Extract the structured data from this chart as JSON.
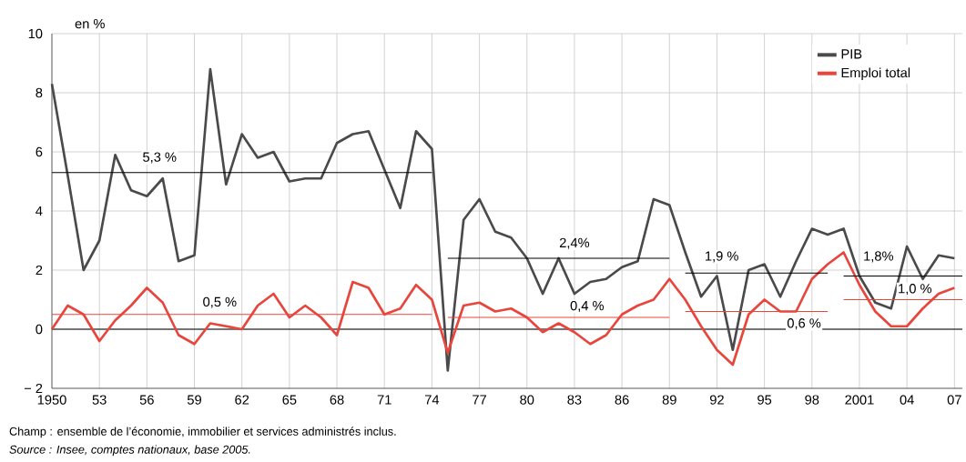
{
  "chart_data": {
    "type": "line",
    "ylabel": "en %",
    "x": [
      1950,
      1951,
      1952,
      1953,
      1954,
      1955,
      1956,
      1957,
      1958,
      1959,
      1960,
      1961,
      1962,
      1963,
      1964,
      1965,
      1966,
      1967,
      1968,
      1969,
      1970,
      1971,
      1972,
      1973,
      1974,
      1975,
      1976,
      1977,
      1978,
      1979,
      1980,
      1981,
      1982,
      1983,
      1984,
      1985,
      1986,
      1987,
      1988,
      1989,
      1990,
      1991,
      1992,
      1993,
      1994,
      1995,
      1996,
      1997,
      1998,
      1999,
      2000,
      2001,
      2002,
      2003,
      2004,
      2005,
      2006,
      2007
    ],
    "series": [
      {
        "name": "PIB",
        "color": "#4a4a4a",
        "values": [
          8.3,
          5.2,
          2.0,
          3.0,
          5.9,
          4.7,
          4.5,
          5.1,
          2.3,
          2.5,
          8.8,
          4.9,
          6.6,
          5.8,
          6.0,
          5.0,
          5.1,
          5.1,
          6.3,
          6.6,
          6.7,
          5.4,
          4.1,
          6.7,
          6.1,
          -1.4,
          3.7,
          4.4,
          3.3,
          3.1,
          2.4,
          1.2,
          2.4,
          1.2,
          1.6,
          1.7,
          2.1,
          2.3,
          4.4,
          4.2,
          2.6,
          1.1,
          1.8,
          -0.7,
          2.0,
          2.2,
          1.1,
          2.3,
          3.4,
          3.2,
          3.4,
          1.8,
          0.9,
          0.7,
          2.8,
          1.7,
          2.5,
          2.4
        ]
      },
      {
        "name": "Emploi total",
        "color": "#e8463c",
        "values": [
          0.0,
          0.8,
          0.5,
          -0.4,
          0.3,
          0.8,
          1.4,
          0.9,
          -0.2,
          -0.5,
          0.2,
          0.1,
          0.0,
          0.8,
          1.2,
          0.4,
          0.8,
          0.4,
          -0.2,
          1.6,
          1.4,
          0.5,
          0.7,
          1.5,
          1.0,
          -0.8,
          0.8,
          0.9,
          0.6,
          0.7,
          0.4,
          -0.1,
          0.2,
          -0.1,
          -0.5,
          -0.2,
          0.5,
          0.8,
          1.0,
          1.7,
          1.0,
          0.1,
          -0.7,
          -1.2,
          0.5,
          1.0,
          0.6,
          0.6,
          1.7,
          2.2,
          2.6,
          1.5,
          0.6,
          0.1,
          0.1,
          0.7,
          1.2,
          1.4
        ]
      },
      {
        "type": "line",
        "color": "#000000",
        "x": [
          1950,
          1974
        ],
        "values": [
          5.3,
          5.3
        ]
      },
      {
        "type": "line",
        "color": "#000000",
        "x": [
          1975,
          1989
        ],
        "values": [
          2.4,
          2.4
        ]
      },
      {
        "type": "line",
        "color": "#000000",
        "x": [
          1990,
          1999
        ],
        "values": [
          1.9,
          1.9
        ]
      },
      {
        "type": "line",
        "color": "#000000",
        "x": [
          2000,
          2007.5
        ],
        "values": [
          1.8,
          1.8
        ]
      },
      {
        "type": "line",
        "color": "#e8463c",
        "x": [
          1950,
          1974
        ],
        "values": [
          0.5,
          0.5
        ]
      },
      {
        "type": "line",
        "color": "#e8463c",
        "x": [
          1975,
          1989
        ],
        "values": [
          0.4,
          0.4
        ]
      },
      {
        "type": "line",
        "color": "#e8463c",
        "x": [
          1990,
          1999
        ],
        "values": [
          0.6,
          0.6
        ]
      },
      {
        "type": "line",
        "color": "#e8463c",
        "x": [
          2000,
          2007.5
        ],
        "values": [
          1.0,
          1.0
        ]
      }
    ],
    "xlim": [
      1950,
      2007.5
    ],
    "xticks": [
      1950,
      {
        "value": 1953,
        "label": "53"
      },
      {
        "value": 1956,
        "label": "56"
      },
      {
        "value": 1959,
        "label": "59"
      },
      {
        "value": 1962,
        "label": "62"
      },
      {
        "value": 1965,
        "label": "65"
      },
      {
        "value": 1968,
        "label": "68"
      },
      {
        "value": 1971,
        "label": "71"
      },
      {
        "value": 1974,
        "label": "74"
      },
      {
        "value": 1977,
        "label": "77"
      },
      {
        "value": 1980,
        "label": "80"
      },
      {
        "value": 1983,
        "label": "83"
      },
      {
        "value": 1986,
        "label": "86"
      },
      {
        "value": 1989,
        "label": "89"
      },
      {
        "value": 1992,
        "label": "92"
      },
      {
        "value": 1995,
        "label": "95"
      },
      {
        "value": 1998,
        "label": "98"
      },
      2001,
      {
        "value": 2004,
        "label": "04"
      },
      {
        "value": 2007,
        "label": "07"
      }
    ],
    "ylim": [
      -2,
      10
    ],
    "yticks": [
      {
        "value": -2,
        "label": "− 2"
      },
      0,
      2,
      4,
      6,
      8,
      10
    ],
    "ref_lines": [
      {
        "axis": "y",
        "value": 0,
        "color": "#000000"
      }
    ],
    "grid": true,
    "legend": "top right",
    "annotations": [
      {
        "text": "5,3 %",
        "x": 1956.8,
        "y": 5.8
      },
      {
        "text": "0,5 %",
        "x": 1960.6,
        "y": 0.9
      },
      {
        "text": "2,4%",
        "x": 1983.0,
        "y": 2.9
      },
      {
        "text": "0,4 %",
        "x": 1983.8,
        "y": 0.77
      },
      {
        "text": "1,9 %",
        "x": 1992.3,
        "y": 2.45
      },
      {
        "text": "0,6 %",
        "x": 1997.5,
        "y": 0.18
      },
      {
        "text": "1,8%",
        "x": 2002.2,
        "y": 2.45
      },
      {
        "text": "1,0 %",
        "x": 2004.5,
        "y": 1.35
      },
      "Champ : ensemble de l’économie, immobilier et services administrés inclus.",
      "*Source : Insee, comptes nationaux, base 2005.*"
    ]
  }
}
